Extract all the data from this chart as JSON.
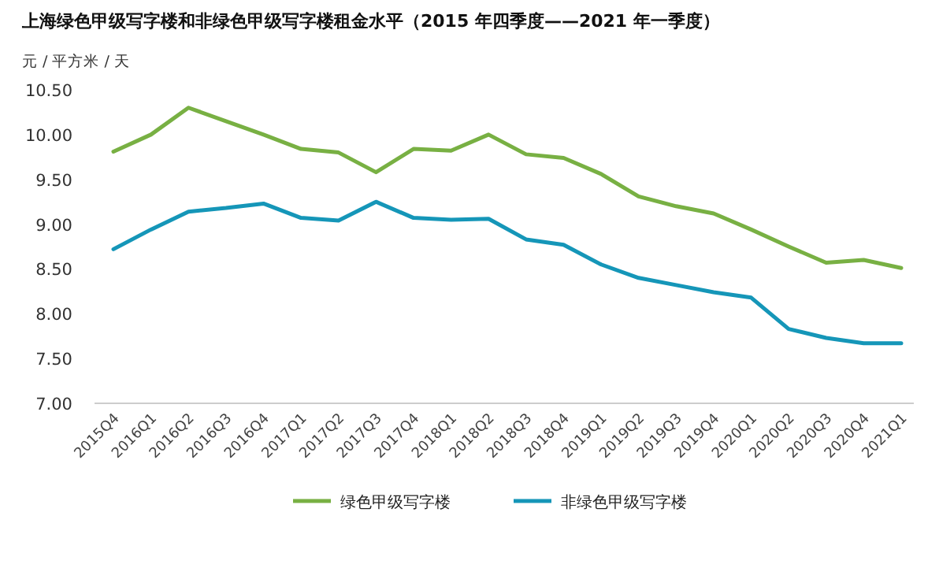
{
  "chart_data": {
    "type": "line",
    "title": "上海绿色甲级写字楼和非绿色甲级写字楼租金水平（2015 年四季度——2021 年一季度）",
    "ylabel": "元 / 平方米 / 天",
    "categories": [
      "2015Q4",
      "2016Q1",
      "2016Q2",
      "2016Q3",
      "2016Q4",
      "2017Q1",
      "2017Q2",
      "2017Q3",
      "2017Q4",
      "2018Q1",
      "2018Q2",
      "2018Q3",
      "2018Q4",
      "2019Q1",
      "2019Q2",
      "2019Q3",
      "2019Q4",
      "2020Q1",
      "2020Q2",
      "2020Q3",
      "2020Q4",
      "2021Q1"
    ],
    "series": [
      {
        "name": "绿色甲级写字楼",
        "color": "#78b043",
        "values": [
          9.81,
          10.0,
          10.3,
          10.15,
          10.0,
          9.84,
          9.8,
          9.58,
          9.84,
          9.82,
          10.0,
          9.78,
          9.74,
          9.56,
          9.31,
          9.2,
          9.12,
          8.94,
          8.75,
          8.57,
          8.6,
          8.51
        ]
      },
      {
        "name": "非绿色甲级写字楼",
        "color": "#1596b8",
        "values": [
          8.72,
          8.94,
          9.14,
          9.18,
          9.23,
          9.07,
          9.04,
          9.25,
          9.07,
          9.05,
          9.06,
          8.83,
          8.77,
          8.55,
          8.4,
          8.32,
          8.24,
          8.18,
          7.83,
          7.73,
          7.67,
          7.67
        ]
      }
    ],
    "ylim": [
      7,
      10.5
    ],
    "yticks": [
      {
        "value": 7,
        "label": "7.00"
      },
      {
        "value": 7.5,
        "label": "7.50"
      },
      {
        "value": 8,
        "label": "8.00"
      },
      {
        "value": 8.5,
        "label": "8.50"
      },
      {
        "value": 9,
        "label": "9.00"
      },
      {
        "value": 9.5,
        "label": "9.50"
      },
      {
        "value": 10,
        "label": "10.00"
      },
      {
        "value": 10.5,
        "label": "10.50"
      }
    ],
    "grid": false,
    "legend": "bottom",
    "marker": "none",
    "line_style": "solid"
  }
}
